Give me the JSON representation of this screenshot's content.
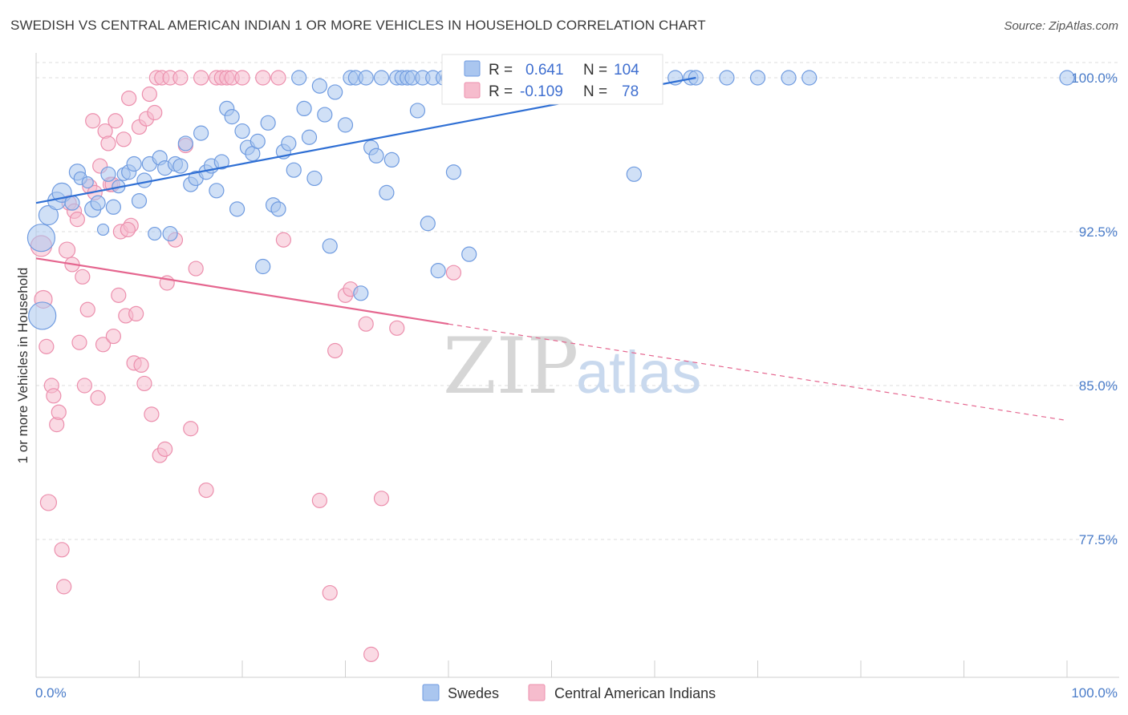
{
  "title": "SWEDISH VS CENTRAL AMERICAN INDIAN 1 OR MORE VEHICLES IN HOUSEHOLD CORRELATION CHART",
  "source": "Source: ZipAtlas.com",
  "watermark": {
    "zip": "ZIP",
    "atlas": "atlas"
  },
  "colors": {
    "blue_fill": "#aac6ef",
    "blue_stroke": "#6f9be0",
    "blue_line": "#2f6fd4",
    "pink_fill": "#f6bccd",
    "pink_stroke": "#ec8fad",
    "pink_line": "#e5668f",
    "grid": "#dcdcdc",
    "tick_text": "#4a7cc9"
  },
  "legend_box": {
    "rows": [
      {
        "r_label": "R =",
        "r_value": "0.641",
        "n_label": "N =",
        "n_value": "104"
      },
      {
        "r_label": "R =",
        "r_value": "-0.109",
        "n_label": "N =",
        "n_value": "78"
      }
    ]
  },
  "chart_data": {
    "type": "scatter",
    "xlabel": "",
    "ylabel": "1 or more Vehicles in Household",
    "xlim": [
      0,
      100
    ],
    "ylim": [
      72.0,
      101.0
    ],
    "x_tick_labels": [
      "0.0%",
      "100.0%"
    ],
    "y_ticks": [
      77.5,
      85.0,
      92.5,
      100.0
    ],
    "y_tick_labels": [
      "77.5%",
      "85.0%",
      "92.5%",
      "100.0%"
    ],
    "grid": "horizontal dashed",
    "legend_position": "bottom-center",
    "series": [
      {
        "name": "Swedes",
        "color": "#aac6ef",
        "trend": {
          "x": [
            0,
            64
          ],
          "y": [
            93.9,
            100.0
          ],
          "dashed_to": null
        },
        "points": [
          [
            0.5,
            92.2,
            30
          ],
          [
            1.2,
            93.3,
            20
          ],
          [
            2.0,
            94.0,
            18
          ],
          [
            2.5,
            94.4,
            20
          ],
          [
            3.5,
            93.9,
            14
          ],
          [
            4.0,
            95.4,
            16
          ],
          [
            4.3,
            95.1,
            12
          ],
          [
            5.0,
            94.9,
            10
          ],
          [
            5.5,
            93.6,
            16
          ],
          [
            6.0,
            93.9,
            14
          ],
          [
            6.5,
            92.6,
            10
          ],
          [
            7.0,
            95.3,
            14
          ],
          [
            7.5,
            93.7,
            14
          ],
          [
            8.0,
            94.7,
            12
          ],
          [
            8.5,
            95.3,
            12
          ],
          [
            9.0,
            95.4,
            14
          ],
          [
            9.5,
            95.8,
            14
          ],
          [
            10.0,
            94.0,
            14
          ],
          [
            10.5,
            95.0,
            14
          ],
          [
            11.0,
            95.8,
            14
          ],
          [
            11.5,
            92.4,
            12
          ],
          [
            12.0,
            96.1,
            14
          ],
          [
            12.5,
            95.6,
            14
          ],
          [
            13.0,
            92.4,
            14
          ],
          [
            13.5,
            95.8,
            14
          ],
          [
            14.0,
            95.7,
            14
          ],
          [
            14.5,
            96.8,
            14
          ],
          [
            15.0,
            94.8,
            14
          ],
          [
            15.5,
            95.1,
            14
          ],
          [
            16.0,
            97.3,
            14
          ],
          [
            16.5,
            95.4,
            14
          ],
          [
            17.0,
            95.7,
            14
          ],
          [
            17.5,
            94.5,
            14
          ],
          [
            18.0,
            95.9,
            14
          ],
          [
            18.5,
            98.5,
            14
          ],
          [
            19.0,
            98.1,
            14
          ],
          [
            19.5,
            93.6,
            14
          ],
          [
            20.0,
            97.4,
            14
          ],
          [
            20.5,
            96.6,
            14
          ],
          [
            21.0,
            96.3,
            14
          ],
          [
            21.5,
            96.9,
            14
          ],
          [
            22.0,
            90.8,
            14
          ],
          [
            22.5,
            97.8,
            14
          ],
          [
            23.0,
            93.8,
            14
          ],
          [
            23.5,
            93.6,
            14
          ],
          [
            24.0,
            96.4,
            14
          ],
          [
            24.5,
            96.8,
            14
          ],
          [
            25.0,
            95.5,
            14
          ],
          [
            25.5,
            100.0,
            14
          ],
          [
            26.0,
            98.5,
            14
          ],
          [
            26.5,
            97.1,
            14
          ],
          [
            27.0,
            95.1,
            14
          ],
          [
            27.5,
            99.6,
            14
          ],
          [
            28.0,
            98.2,
            14
          ],
          [
            28.5,
            91.8,
            14
          ],
          [
            29.0,
            99.3,
            14
          ],
          [
            30.0,
            97.7,
            14
          ],
          [
            30.5,
            100.0,
            14
          ],
          [
            31.0,
            100.0,
            14
          ],
          [
            31.5,
            89.5,
            14
          ],
          [
            32.0,
            100.0,
            14
          ],
          [
            32.5,
            96.6,
            14
          ],
          [
            33.0,
            96.2,
            14
          ],
          [
            33.5,
            100.0,
            14
          ],
          [
            34.0,
            94.4,
            14
          ],
          [
            34.5,
            96.0,
            14
          ],
          [
            35.0,
            100.0,
            14
          ],
          [
            35.5,
            100.0,
            14
          ],
          [
            36.0,
            100.0,
            14
          ],
          [
            36.5,
            100.0,
            14
          ],
          [
            37.0,
            98.4,
            14
          ],
          [
            37.5,
            100.0,
            14
          ],
          [
            38.0,
            92.9,
            14
          ],
          [
            38.5,
            100.0,
            14
          ],
          [
            39.0,
            90.6,
            14
          ],
          [
            39.5,
            100.0,
            14
          ],
          [
            40.0,
            100.0,
            14
          ],
          [
            40.5,
            95.4,
            14
          ],
          [
            41.0,
            100.0,
            14
          ],
          [
            41.5,
            100.0,
            14
          ],
          [
            42.0,
            91.4,
            14
          ],
          [
            42.5,
            100.0,
            14
          ],
          [
            43.0,
            100.0,
            14
          ],
          [
            44.0,
            100.0,
            14
          ],
          [
            45.0,
            100.0,
            14
          ],
          [
            46.0,
            100.0,
            14
          ],
          [
            47.0,
            100.0,
            14
          ],
          [
            48.0,
            100.0,
            14
          ],
          [
            49.0,
            100.0,
            14
          ],
          [
            50.0,
            100.0,
            14
          ],
          [
            51.0,
            100.0,
            14
          ],
          [
            52.0,
            100.0,
            14
          ],
          [
            53.0,
            100.0,
            14
          ],
          [
            54.0,
            100.0,
            14
          ],
          [
            55.0,
            100.0,
            14
          ],
          [
            56.0,
            100.0,
            14
          ],
          [
            57.0,
            100.0,
            14
          ],
          [
            58.0,
            100.0,
            14
          ],
          [
            60.0,
            100.0,
            14
          ],
          [
            62.0,
            100.0,
            14
          ],
          [
            67.0,
            100.0,
            14
          ],
          [
            70.0,
            100.0,
            14
          ],
          [
            73.0,
            100.0,
            14
          ],
          [
            75.0,
            100.0,
            14
          ],
          [
            100.0,
            100.0,
            14
          ],
          [
            0.6,
            88.4,
            30
          ],
          [
            58.0,
            95.3,
            14
          ],
          [
            63.5,
            100.0,
            14
          ],
          [
            64.0,
            100.0,
            14
          ]
        ]
      },
      {
        "name": "Central American Indians",
        "color": "#f6bccd",
        "trend": {
          "x": [
            0,
            40
          ],
          "y": [
            91.2,
            88.0
          ],
          "dashed_to": [
            100,
            83.3
          ]
        },
        "points": [
          [
            0.5,
            91.8,
            22
          ],
          [
            0.7,
            89.2,
            18
          ],
          [
            1.0,
            86.9,
            14
          ],
          [
            1.2,
            79.3,
            16
          ],
          [
            1.5,
            85.0,
            14
          ],
          [
            1.7,
            84.5,
            14
          ],
          [
            2.0,
            83.1,
            14
          ],
          [
            2.2,
            83.7,
            14
          ],
          [
            2.5,
            77.0,
            14
          ],
          [
            2.7,
            75.2,
            14
          ],
          [
            3.0,
            91.6,
            16
          ],
          [
            3.2,
            93.9,
            14
          ],
          [
            3.5,
            90.9,
            14
          ],
          [
            3.7,
            93.5,
            14
          ],
          [
            4.0,
            93.1,
            14
          ],
          [
            4.2,
            87.1,
            14
          ],
          [
            4.5,
            90.3,
            14
          ],
          [
            4.7,
            85.0,
            14
          ],
          [
            5.0,
            88.7,
            14
          ],
          [
            5.2,
            94.7,
            14
          ],
          [
            5.5,
            97.9,
            14
          ],
          [
            5.7,
            94.4,
            14
          ],
          [
            6.0,
            84.4,
            14
          ],
          [
            6.2,
            95.7,
            14
          ],
          [
            6.5,
            87.0,
            14
          ],
          [
            6.7,
            97.4,
            14
          ],
          [
            7.0,
            96.8,
            14
          ],
          [
            7.2,
            94.8,
            14
          ],
          [
            7.5,
            87.4,
            14
          ],
          [
            7.7,
            97.9,
            14
          ],
          [
            8.0,
            89.4,
            14
          ],
          [
            8.2,
            92.5,
            14
          ],
          [
            8.5,
            97.0,
            14
          ],
          [
            8.7,
            88.4,
            14
          ],
          [
            9.0,
            99.0,
            14
          ],
          [
            9.2,
            92.8,
            14
          ],
          [
            9.5,
            86.1,
            14
          ],
          [
            9.7,
            88.5,
            14
          ],
          [
            10.0,
            97.6,
            14
          ],
          [
            10.2,
            86.0,
            14
          ],
          [
            10.5,
            85.1,
            14
          ],
          [
            10.7,
            98.0,
            14
          ],
          [
            11.0,
            99.2,
            14
          ],
          [
            11.2,
            83.6,
            14
          ],
          [
            11.5,
            98.3,
            14
          ],
          [
            11.7,
            100.0,
            14
          ],
          [
            12.0,
            81.6,
            14
          ],
          [
            12.2,
            100.0,
            14
          ],
          [
            12.5,
            81.9,
            14
          ],
          [
            12.7,
            90.0,
            14
          ],
          [
            13.0,
            100.0,
            14
          ],
          [
            13.5,
            92.1,
            14
          ],
          [
            14.0,
            100.0,
            14
          ],
          [
            14.5,
            96.7,
            14
          ],
          [
            15.0,
            82.9,
            14
          ],
          [
            15.5,
            90.7,
            14
          ],
          [
            16.0,
            100.0,
            14
          ],
          [
            16.5,
            79.9,
            14
          ],
          [
            17.5,
            100.0,
            14
          ],
          [
            18.0,
            100.0,
            14
          ],
          [
            18.5,
            100.0,
            14
          ],
          [
            19.0,
            100.0,
            14
          ],
          [
            20.0,
            100.0,
            14
          ],
          [
            22.0,
            100.0,
            14
          ],
          [
            23.5,
            100.0,
            14
          ],
          [
            24.0,
            92.1,
            14
          ],
          [
            27.5,
            79.4,
            14
          ],
          [
            28.5,
            74.9,
            14
          ],
          [
            29.0,
            86.7,
            14
          ],
          [
            30.0,
            89.4,
            14
          ],
          [
            30.5,
            89.7,
            14
          ],
          [
            32.0,
            88.0,
            14
          ],
          [
            32.5,
            71.9,
            14
          ],
          [
            33.5,
            79.5,
            14
          ],
          [
            35.0,
            87.8,
            14
          ],
          [
            40.5,
            90.5,
            14
          ],
          [
            7.4,
            94.8,
            14
          ],
          [
            8.9,
            92.6,
            14
          ]
        ]
      }
    ]
  }
}
